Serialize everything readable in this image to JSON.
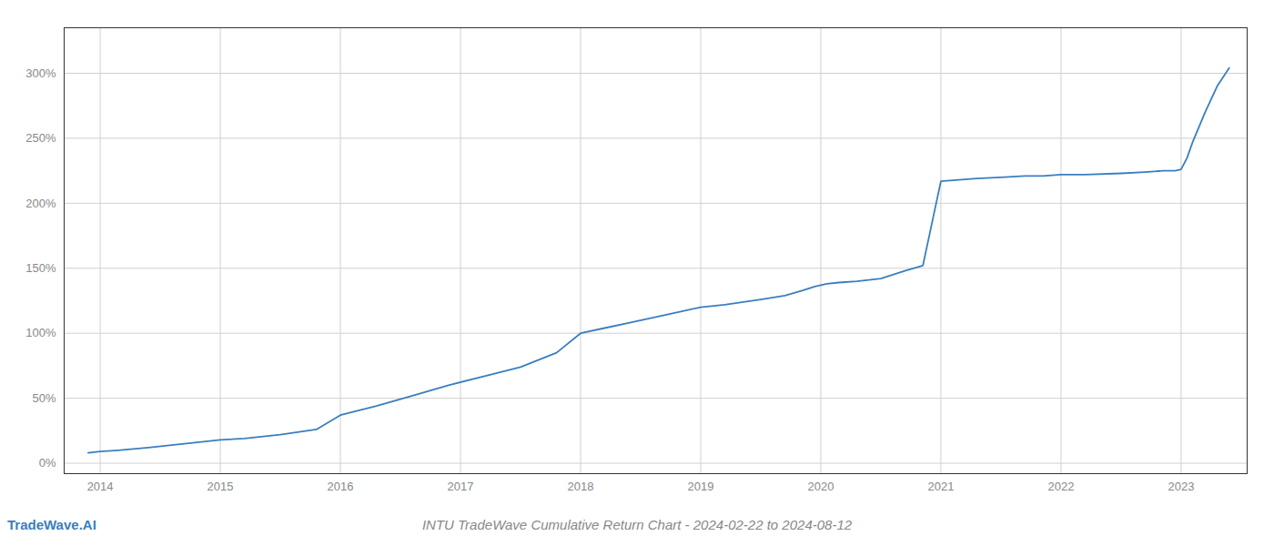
{
  "chart_data": {
    "type": "line",
    "title": "INTU TradeWave Cumulative Return Chart - 2024-02-22 to 2024-08-12",
    "annotations": [
      "TradeWave.AI"
    ],
    "x": [
      2013.9,
      2014.0,
      2014.15,
      2014.4,
      2014.7,
      2015.0,
      2015.2,
      2015.5,
      2015.8,
      2016.0,
      2016.3,
      2016.6,
      2016.9,
      2017.2,
      2017.5,
      2017.8,
      2018.0,
      2018.2,
      2018.4,
      2018.6,
      2018.8,
      2019.0,
      2019.2,
      2019.5,
      2019.7,
      2019.85,
      2019.95,
      2020.05,
      2020.15,
      2020.3,
      2020.5,
      2020.7,
      2020.85,
      2021.0,
      2021.15,
      2021.3,
      2021.5,
      2021.7,
      2021.85,
      2022.0,
      2022.2,
      2022.5,
      2022.7,
      2022.85,
      2022.95,
      2023.0,
      2023.05,
      2023.1,
      2023.2,
      2023.3,
      2023.4
    ],
    "values": [
      8,
      9,
      10,
      12,
      15,
      18,
      19,
      22,
      26,
      37,
      44,
      52,
      60,
      67,
      74,
      85,
      100,
      104,
      108,
      112,
      116,
      120,
      122,
      126,
      129,
      133,
      136,
      138,
      139,
      140,
      142,
      148,
      152,
      217,
      218,
      219,
      220,
      221,
      221,
      222,
      222,
      223,
      224,
      225,
      225,
      226,
      235,
      248,
      270,
      290,
      304
    ],
    "color": "#3a7ebf",
    "xlim": [
      2013.7,
      2023.55
    ],
    "ylim": [
      -8,
      335
    ],
    "xticks": [
      2014,
      2015,
      2016,
      2017,
      2018,
      2019,
      2020,
      2021,
      2022,
      2023
    ],
    "yticks": [
      {
        "value": 0,
        "label": "0%"
      },
      {
        "value": 50,
        "label": "50%"
      },
      {
        "value": 100,
        "label": "100%"
      },
      {
        "value": 150,
        "label": "150%"
      },
      {
        "value": 200,
        "label": "200%"
      },
      {
        "value": 250,
        "label": "250%"
      },
      {
        "value": 300,
        "label": "300%"
      }
    ],
    "grid": true
  }
}
